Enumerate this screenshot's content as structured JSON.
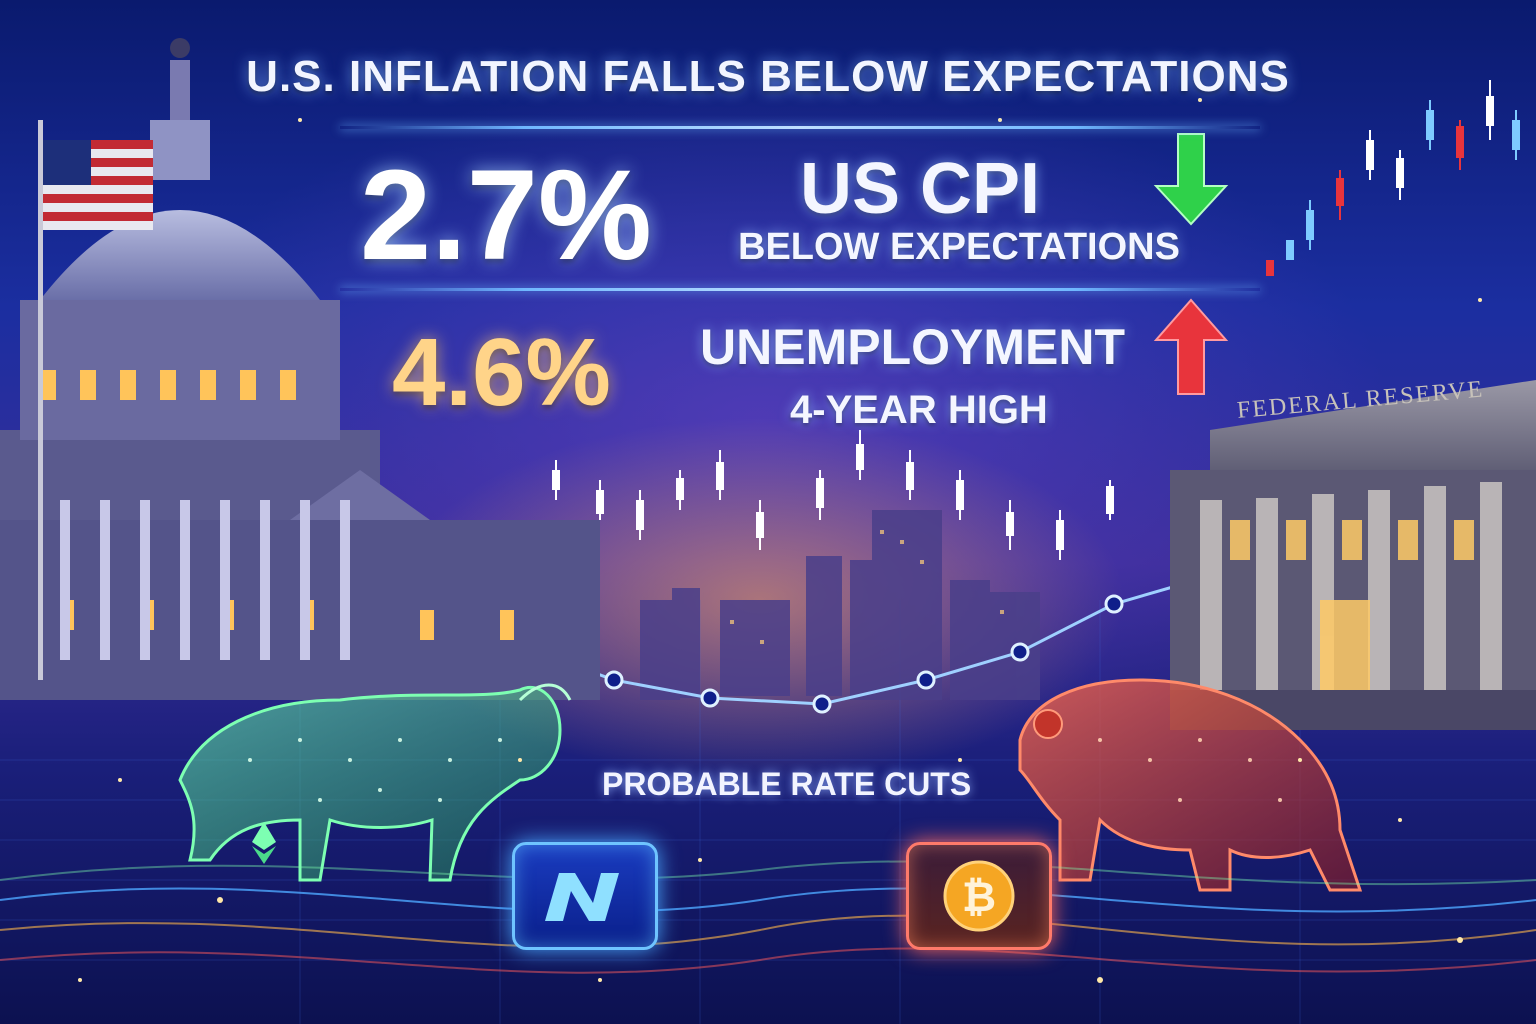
{
  "headline": "U.S. INFLATION FALLS BELOW EXPECTATIONS",
  "cpi": {
    "value": "2.7%",
    "label": "US CPI",
    "sublabel": "BELOW EXPECTATIONS",
    "arrow": "down-arrow-icon",
    "arrow_color": "#2fd14a"
  },
  "unemployment": {
    "value": "4.6%",
    "label": "UNEMPLOYMENT",
    "sublabel": "4-YEAR HIGH",
    "arrow": "up-arrow-icon",
    "arrow_color": "#e8343c"
  },
  "building_sign": "FEDERAL  RESERVE",
  "center_caption": "PROBABLE RATE CUTS",
  "icons": [
    "capitol-building-icon",
    "us-flag-icon",
    "federal-reserve-building-icon",
    "bull-icon",
    "bear-icon",
    "ethereum-icon",
    "nexo-logo-icon",
    "bitcoin-icon",
    "candlestick-chart-icon",
    "line-chart-icon"
  ],
  "colors": {
    "background": "#1b2ea0",
    "bull": "#3cff8a",
    "bear": "#ff4a3a",
    "accent_glow": "#6fb7ff",
    "unemployment_number": "#ffd489"
  }
}
